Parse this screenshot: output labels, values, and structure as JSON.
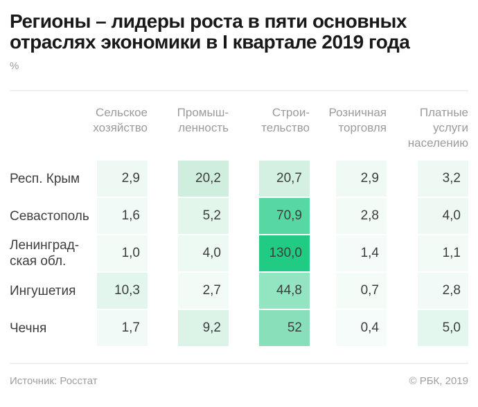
{
  "page": {
    "title": "Регионы – лидеры роста в пяти основных\nотраслях экономики в I квартале 2019 года",
    "unit_label": "%",
    "footer": {
      "source": "Источник: Росстат",
      "copyright": "© РБК, 2019"
    },
    "colors": {
      "background": "#ffffff",
      "title_text": "#191919",
      "header_text": "#9b9b9b",
      "body_text": "#3d3d3d",
      "divider": "#efefef",
      "heat_low": "#f5fcf9",
      "heat_high": "#22cb83"
    }
  },
  "chart_data": {
    "type": "heatmap",
    "title": "Регионы – лидеры роста в пяти основных отраслях экономики в I квартале 2019 года",
    "unit": "%",
    "source": "Росстат",
    "columns": [
      "Сельское\nхозяйство",
      "Промыш-\nленность",
      "Строи-\nтельство",
      "Розничная\nторговля",
      "Платные\nуслуги\nнаселению"
    ],
    "rows": [
      {
        "label": "Респ. Крым",
        "values": [
          2.9,
          20.2,
          20.7,
          2.9,
          3.2
        ],
        "display": [
          "2,9",
          "20,2",
          "20,7",
          "2,9",
          "3,2"
        ],
        "cell_colors": [
          "#eef9f4",
          "#cfeede",
          "#d4f0e2",
          "#f0faf5",
          "#eef9f4"
        ]
      },
      {
        "label": "Севастополь",
        "values": [
          1.6,
          5.2,
          70.9,
          2.8,
          4.0
        ],
        "display": [
          "1,6",
          "5,2",
          "70,9",
          "2,8",
          "4,0"
        ],
        "cell_colors": [
          "#f1faf6",
          "#e2f6eb",
          "#57d8a2",
          "#f2fbf6",
          "#eef9f4"
        ]
      },
      {
        "label": "Ленинград-\nская обл.",
        "values": [
          1.0,
          4.0,
          130.0,
          1.4,
          1.1
        ],
        "display": [
          "1,0",
          "4,0",
          "130,0",
          "1,4",
          "1,1"
        ],
        "cell_colors": [
          "#f3fbf7",
          "#edf9f3",
          "#22cb83",
          "#f4fbf8",
          "#f3fbf7"
        ]
      },
      {
        "label": "Ингушетия",
        "values": [
          10.3,
          2.7,
          44.8,
          0.7,
          2.8
        ],
        "display": [
          "10,3",
          "2,7",
          "44,8",
          "0,7",
          "2,8"
        ],
        "cell_colors": [
          "#e3f6ed",
          "#f2fbf6",
          "#93e4c0",
          "#f4fcf8",
          "#f1faf6"
        ]
      },
      {
        "label": "Чечня",
        "values": [
          1.7,
          9.2,
          52,
          0.4,
          5.0
        ],
        "display": [
          "1,7",
          "9,2",
          "52",
          "0,4",
          "5,0"
        ],
        "cell_colors": [
          "#f1faf6",
          "#dcf4e8",
          "#88e0ba",
          "#f5fcf9",
          "#e4f7ee"
        ]
      }
    ]
  }
}
